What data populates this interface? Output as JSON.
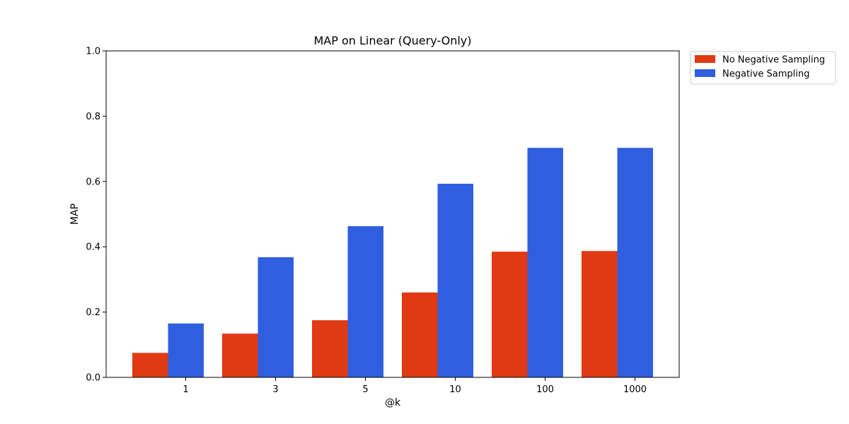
{
  "chart_data": {
    "type": "bar",
    "title": "MAP on Linear (Query-Only)",
    "xlabel": "@k",
    "ylabel": "MAP",
    "categories": [
      "1",
      "3",
      "5",
      "10",
      "100",
      "1000"
    ],
    "ylim": [
      0,
      1.0
    ],
    "yticks": [
      "0.0",
      "0.2",
      "0.4",
      "0.6",
      "0.8",
      "1.0"
    ],
    "grid": false,
    "legend_position": "outside-top-right",
    "series": [
      {
        "name": "No Negative Sampling",
        "color": "#e03a14",
        "values": [
          0.075,
          0.134,
          0.175,
          0.26,
          0.385,
          0.387
        ]
      },
      {
        "name": "Negative Sampling",
        "color": "#2f5fdf",
        "values": [
          0.165,
          0.368,
          0.463,
          0.593,
          0.703,
          0.703
        ]
      }
    ]
  }
}
